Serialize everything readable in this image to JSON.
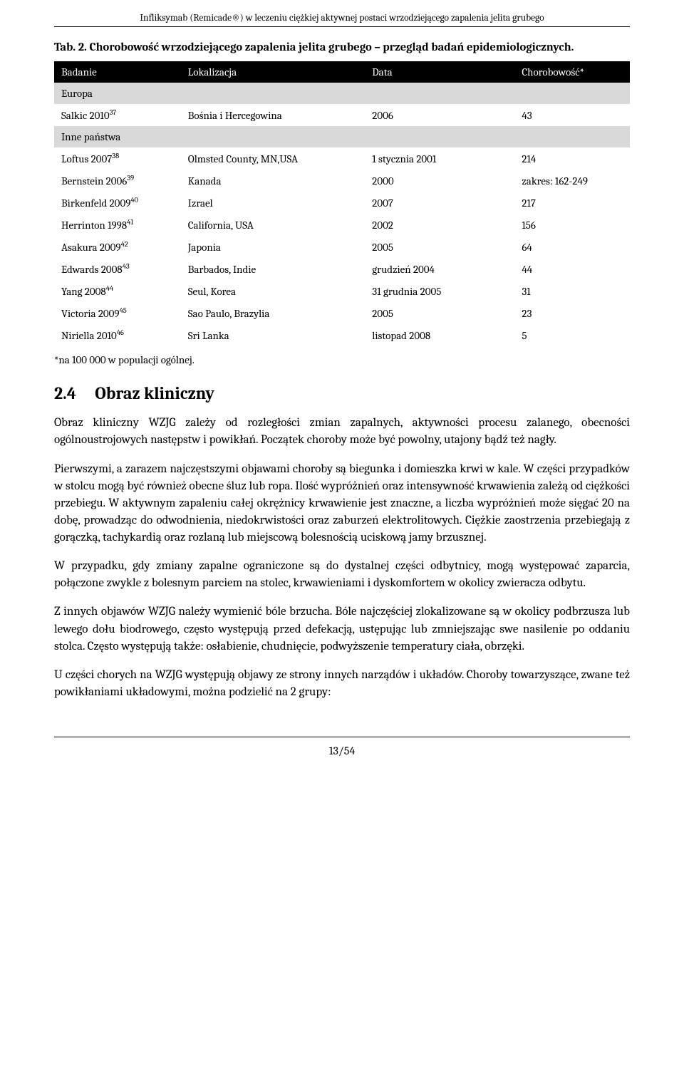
{
  "running_header": "Infliksymab (Remicade®) w leczeniu ciężkiej aktywnej postaci wrzodziejącego zapalenia jelita grubego",
  "table_caption": "Tab. 2. Chorobowość wrzodziejącego zapalenia jelita grubego – przegląd badań epidemiologicznych.",
  "table": {
    "columns": [
      "Badanie",
      "Lokalizacja",
      "Data",
      "Chorobowość*"
    ],
    "header_bg": "#000000",
    "header_color": "#ffffff",
    "section_bg": "#d9d9d9",
    "font_size_pt": 11,
    "sections": [
      {
        "label": "Europa",
        "rows": [
          {
            "badanie_name": "Salkic 2010",
            "badanie_ref": "37",
            "lokalizacja": "Bośnia i Hercegowina",
            "data": "2006",
            "chorobowosc": "43"
          }
        ]
      },
      {
        "label": "Inne państwa",
        "rows": [
          {
            "badanie_name": "Loftus 2007",
            "badanie_ref": "38",
            "lokalizacja": "Olmsted County, MN,USA",
            "data": "1 stycznia 2001",
            "chorobowosc": "214"
          },
          {
            "badanie_name": "Bernstein 2006",
            "badanie_ref": "39",
            "lokalizacja": "Kanada",
            "data": "2000",
            "chorobowosc": "zakres: 162-249"
          },
          {
            "badanie_name": "Birkenfeld 2009",
            "badanie_ref": "40",
            "lokalizacja": "Izrael",
            "data": "2007",
            "chorobowosc": "217"
          },
          {
            "badanie_name": "Herrinton 1998",
            "badanie_ref": "41",
            "lokalizacja": "California, USA",
            "data": "2002",
            "chorobowosc": "156"
          },
          {
            "badanie_name": "Asakura 2009",
            "badanie_ref": "42",
            "lokalizacja": "Japonia",
            "data": "2005",
            "chorobowosc": "64"
          },
          {
            "badanie_name": "Edwards 2008",
            "badanie_ref": "43",
            "lokalizacja": "Barbados, Indie",
            "data": "grudzień 2004",
            "chorobowosc": "44"
          },
          {
            "badanie_name": "Yang 2008",
            "badanie_ref": "44",
            "lokalizacja": "Seul, Korea",
            "data": "31 grudnia 2005",
            "chorobowosc": "31"
          },
          {
            "badanie_name": "Victoria 2009",
            "badanie_ref": "45",
            "lokalizacja": "Sao Paulo, Brazylia",
            "data": "2005",
            "chorobowosc": "23"
          },
          {
            "badanie_name": "Niriella 2010",
            "badanie_ref": "46",
            "lokalizacja": "Sri Lanka",
            "data": "listopad 2008",
            "chorobowosc": "5"
          }
        ]
      }
    ]
  },
  "footnote": "*na 100 000 w populacji ogólnej.",
  "section": {
    "number": "2.4",
    "title": "Obraz kliniczny"
  },
  "paragraphs": [
    "Obraz kliniczny WZJG zależy od rozległości zmian zapalnych, aktywności procesu zalanego, obecności ogólnoustrojowych następstw i powikłań. Początek choroby może być powolny, utajony bądź też nagły.",
    "Pierwszymi, a zarazem najczęstszymi objawami choroby są biegunka i domieszka krwi w kale. W części przypadków w stolcu mogą być również obecne śluz lub ropa. Ilość wypróżnień oraz intensywność krwawienia zależą od ciężkości przebiegu. W aktywnym zapaleniu całej okrężnicy krwawienie jest znaczne, a liczba wypróżnień może sięgać 20 na dobę, prowadząc do odwodnienia, niedokrwistości oraz zaburzeń elektrolitowych. Ciężkie zaostrzenia przebiegają z gorączką, tachykardią oraz rozlaną lub miejscową bolesnością uciskową jamy brzusznej.",
    "W przypadku, gdy zmiany zapalne ograniczone są do dystalnej części odbytnicy, mogą występować zaparcia, połączone zwykle z bolesnym parciem na stolec, krwawieniami i dyskomfortem w okolicy zwieracza odbytu.",
    "Z innych objawów WZJG należy wymienić bóle brzucha. Bóle najczęściej zlokalizowane są w okolicy podbrzusza lub lewego dołu biodrowego, często występują przed defekacją, ustępując lub zmniejszając swe nasilenie po oddaniu stolca. Często występują także: osłabienie, chudnięcie, podwyższenie temperatury ciała, obrzęki.",
    "U części chorych na WZJG występują objawy ze strony innych narządów i układów. Choroby towarzyszące, zwane też powikłaniami układowymi, można podzielić na 2 grupy:"
  ],
  "page_number": "13/54",
  "colors": {
    "text": "#000000",
    "background": "#ffffff",
    "rule": "#000000"
  }
}
